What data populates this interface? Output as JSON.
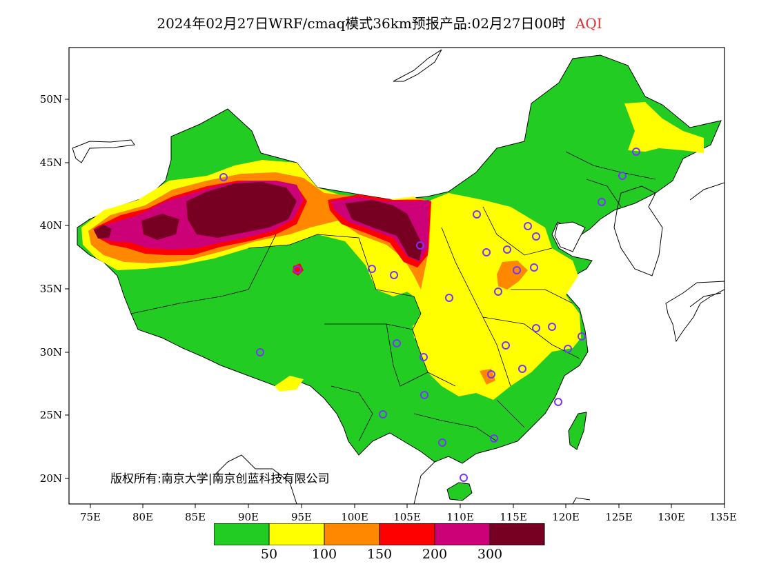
{
  "title": {
    "text": "2024年02月27日WRF/cmaq模式36km预报产品:02月27日00时",
    "product_label": "AQI"
  },
  "axes": {
    "y_ticks": [
      "50N",
      "45N",
      "40N",
      "35N",
      "30N",
      "25N",
      "20N"
    ],
    "x_ticks": [
      "75E",
      "80E",
      "85E",
      "90E",
      "95E",
      "100E",
      "105E",
      "110E",
      "115E",
      "120E",
      "125E",
      "130E",
      "135E"
    ]
  },
  "copyright": "版权所有:南京大学|南京创蓝科技有限公司",
  "legend": {
    "colors": [
      "#22cc22",
      "#ffff00",
      "#ff8800",
      "#ff0000",
      "#cc0077",
      "#770022"
    ],
    "boundaries": [
      "50",
      "100",
      "150",
      "200",
      "300"
    ]
  },
  "colors": {
    "ocean": "#ffffff",
    "station_marker": "#7733ff",
    "title_accent": "#e03030"
  }
}
